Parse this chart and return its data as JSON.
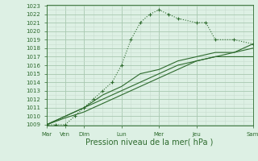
{
  "title": "",
  "xlabel": "Pression niveau de la mer( hPa )",
  "ylim_min": 1009,
  "ylim_max": 1023,
  "yticks": [
    1009,
    1010,
    1011,
    1012,
    1013,
    1014,
    1015,
    1016,
    1017,
    1018,
    1019,
    1020,
    1021,
    1022,
    1023
  ],
  "xtick_positions": [
    0,
    1,
    2,
    4,
    6,
    8,
    11
  ],
  "xtick_labels": [
    "Mar",
    "Ven",
    "Dim",
    "Lun",
    "Mer",
    "Jeu",
    "Sam"
  ],
  "line1_x": [
    0,
    0.5,
    1,
    1.5,
    2,
    2.5,
    3,
    3.5,
    4,
    4.5,
    5,
    5.5,
    6,
    6.5,
    7,
    8,
    8.5,
    9,
    10,
    11
  ],
  "line1_y": [
    1009,
    1009,
    1009,
    1010,
    1011,
    1012,
    1013,
    1014,
    1016,
    1019,
    1021,
    1022,
    1022.5,
    1022,
    1021.5,
    1021,
    1021,
    1019,
    1019,
    1018.5
  ],
  "line2_x": [
    0,
    1,
    2,
    3,
    4,
    5,
    6,
    7,
    8,
    9,
    10,
    11
  ],
  "line2_y": [
    1009,
    1010,
    1011,
    1012.5,
    1013.5,
    1015,
    1015.5,
    1016.5,
    1017,
    1017.5,
    1017.5,
    1018
  ],
  "line3_x": [
    0,
    1,
    2,
    3,
    4,
    5,
    6,
    7,
    8,
    9,
    10,
    11
  ],
  "line3_y": [
    1009,
    1010,
    1011,
    1012,
    1013,
    1014,
    1015,
    1016,
    1016.5,
    1017,
    1017,
    1017
  ],
  "line4_x": [
    0,
    1,
    2,
    3,
    4,
    5,
    6,
    7,
    8,
    9,
    10,
    11
  ],
  "line4_y": [
    1009,
    1009.8,
    1010.5,
    1011.5,
    1012.5,
    1013.5,
    1014.5,
    1015.5,
    1016.5,
    1017,
    1017.5,
    1018.5
  ],
  "line_color": "#2d6a2d",
  "bg_color": "#ddf0e4",
  "grid_major_color": "#a8c8b0",
  "grid_minor_color": "#c8ddd0",
  "fig_bg": "#ddf0e4",
  "xlabel_fontsize": 7,
  "tick_fontsize": 5
}
